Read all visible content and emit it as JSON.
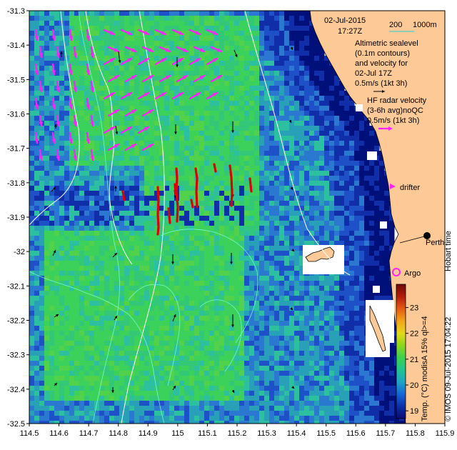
{
  "date": "02-Jul-2015",
  "time": "17:27Z",
  "bathymetry_scale": {
    "label_200": "200",
    "label_1000": "1000m"
  },
  "legend": {
    "altimetric": [
      "Altimetric sealevel",
      "(0.1m contours)",
      "and velocity for",
      "02-Jul 17Z"
    ],
    "altimetric_scale": "0.5m/s (1kt 3h)",
    "hf_radar": [
      "HF radar velocity",
      "(3-6h avg)noQC"
    ],
    "hf_scale": "0.5m/s (1kt 3h)",
    "drifter": "drifter",
    "argo": "Argo",
    "city": "Perth"
  },
  "side_text": {
    "hobart": "Hobart time",
    "credit": "© IMOS 09-Jul-2015 17:04:22",
    "colorbar_label": "Temp. (°C) modisA 15% ql>=4"
  },
  "colorbar": {
    "ticks": [
      "19",
      "20",
      "21",
      "22",
      "23"
    ],
    "colors": [
      "#0a0a78",
      "#0b2fa8",
      "#1266d8",
      "#1fa3c8",
      "#23c490",
      "#3ad24e",
      "#8ed61e",
      "#e6d81a",
      "#f2a41a",
      "#e45a14",
      "#b31c0c",
      "#6e0a06"
    ]
  },
  "axes": {
    "x_ticks": [
      "114.5",
      "114.6",
      "114.7",
      "114.8",
      "114.9",
      "115",
      "115.1",
      "115.2",
      "115.3",
      "115.4",
      "115.5",
      "115.6",
      "115.7",
      "115.8",
      "115.9"
    ],
    "y_ticks": [
      "-31.3",
      "-31.4",
      "-31.5",
      "-31.6",
      "-31.7",
      "-31.8",
      "-31.9",
      "-32",
      "-32.1",
      "-32.2",
      "-32.3",
      "-32.4",
      "-32.5"
    ],
    "lon_range": [
      114.5,
      115.9
    ],
    "lat_range": [
      -32.5,
      -31.3
    ]
  },
  "colors": {
    "land": "#fdc996",
    "hf_arrow": "#ff22ff",
    "drifter_track": "#dd0000",
    "contour": "#ffffff",
    "argo": "#ff22ff"
  },
  "markers": {
    "perth": {
      "lon": 115.86,
      "lat": -31.95
    },
    "argo": {
      "lon": 115.745,
      "lat": -32.075
    }
  }
}
